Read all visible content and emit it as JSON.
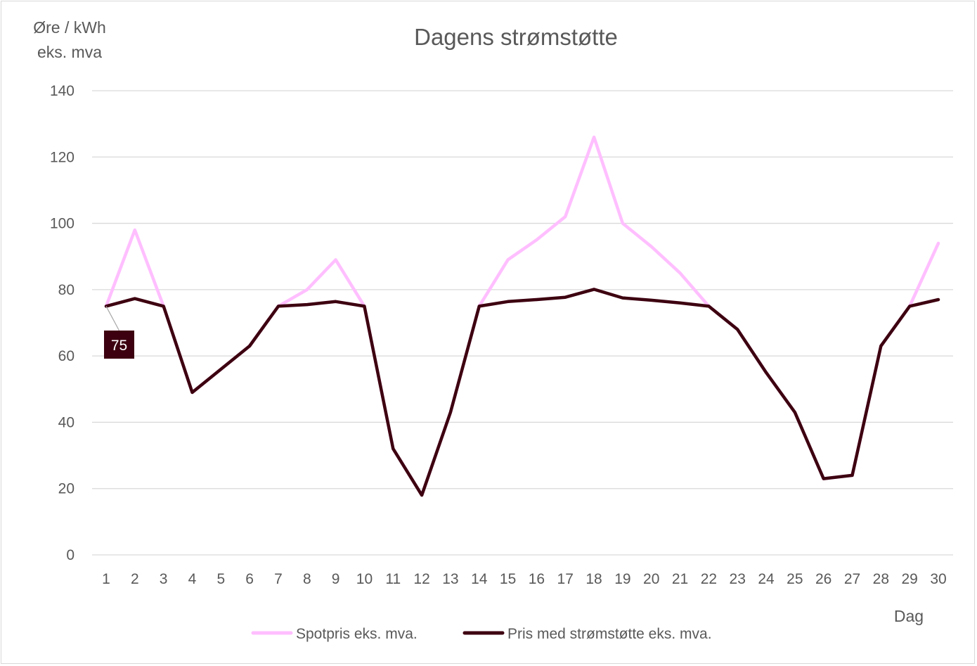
{
  "chart_data": {
    "type": "line",
    "title": "Dagens strømstøtte",
    "ylabel_lines": [
      "Øre / kWh",
      "eks. mva"
    ],
    "xlabel": "Dag",
    "ylim": [
      0,
      140
    ],
    "yticks": [
      0,
      20,
      40,
      60,
      80,
      100,
      120,
      140
    ],
    "grid": true,
    "legend_position": "bottom",
    "categories": [
      "1",
      "2",
      "3",
      "4",
      "5",
      "6",
      "7",
      "8",
      "9",
      "10",
      "11",
      "12",
      "13",
      "14",
      "15",
      "16",
      "17",
      "18",
      "19",
      "20",
      "21",
      "22",
      "23",
      "24",
      "25",
      "26",
      "27",
      "28",
      "29",
      "30"
    ],
    "series": [
      {
        "name": "Spotpris eks. mva.",
        "color": "#ffbfff",
        "values": [
          75,
          98,
          75,
          49,
          56,
          63,
          75,
          80,
          89,
          75,
          32,
          18,
          43,
          75,
          89,
          95,
          102,
          126,
          100,
          93,
          85,
          75,
          68,
          55,
          43,
          23,
          24,
          63,
          75,
          94
        ]
      },
      {
        "name": "Pris med strømstøtte eks. mva.",
        "color": "#3d0010",
        "values": [
          75,
          77.3,
          75,
          49,
          56,
          63,
          75,
          75.5,
          76.4,
          75,
          32,
          18,
          43,
          75,
          76.4,
          77,
          77.7,
          80.1,
          77.5,
          76.8,
          76,
          75,
          68,
          55,
          43,
          23,
          24,
          63,
          75,
          77
        ]
      }
    ],
    "annotations": [
      {
        "series": 1,
        "index": 0,
        "label": "75",
        "background": "#3d0010"
      }
    ]
  }
}
